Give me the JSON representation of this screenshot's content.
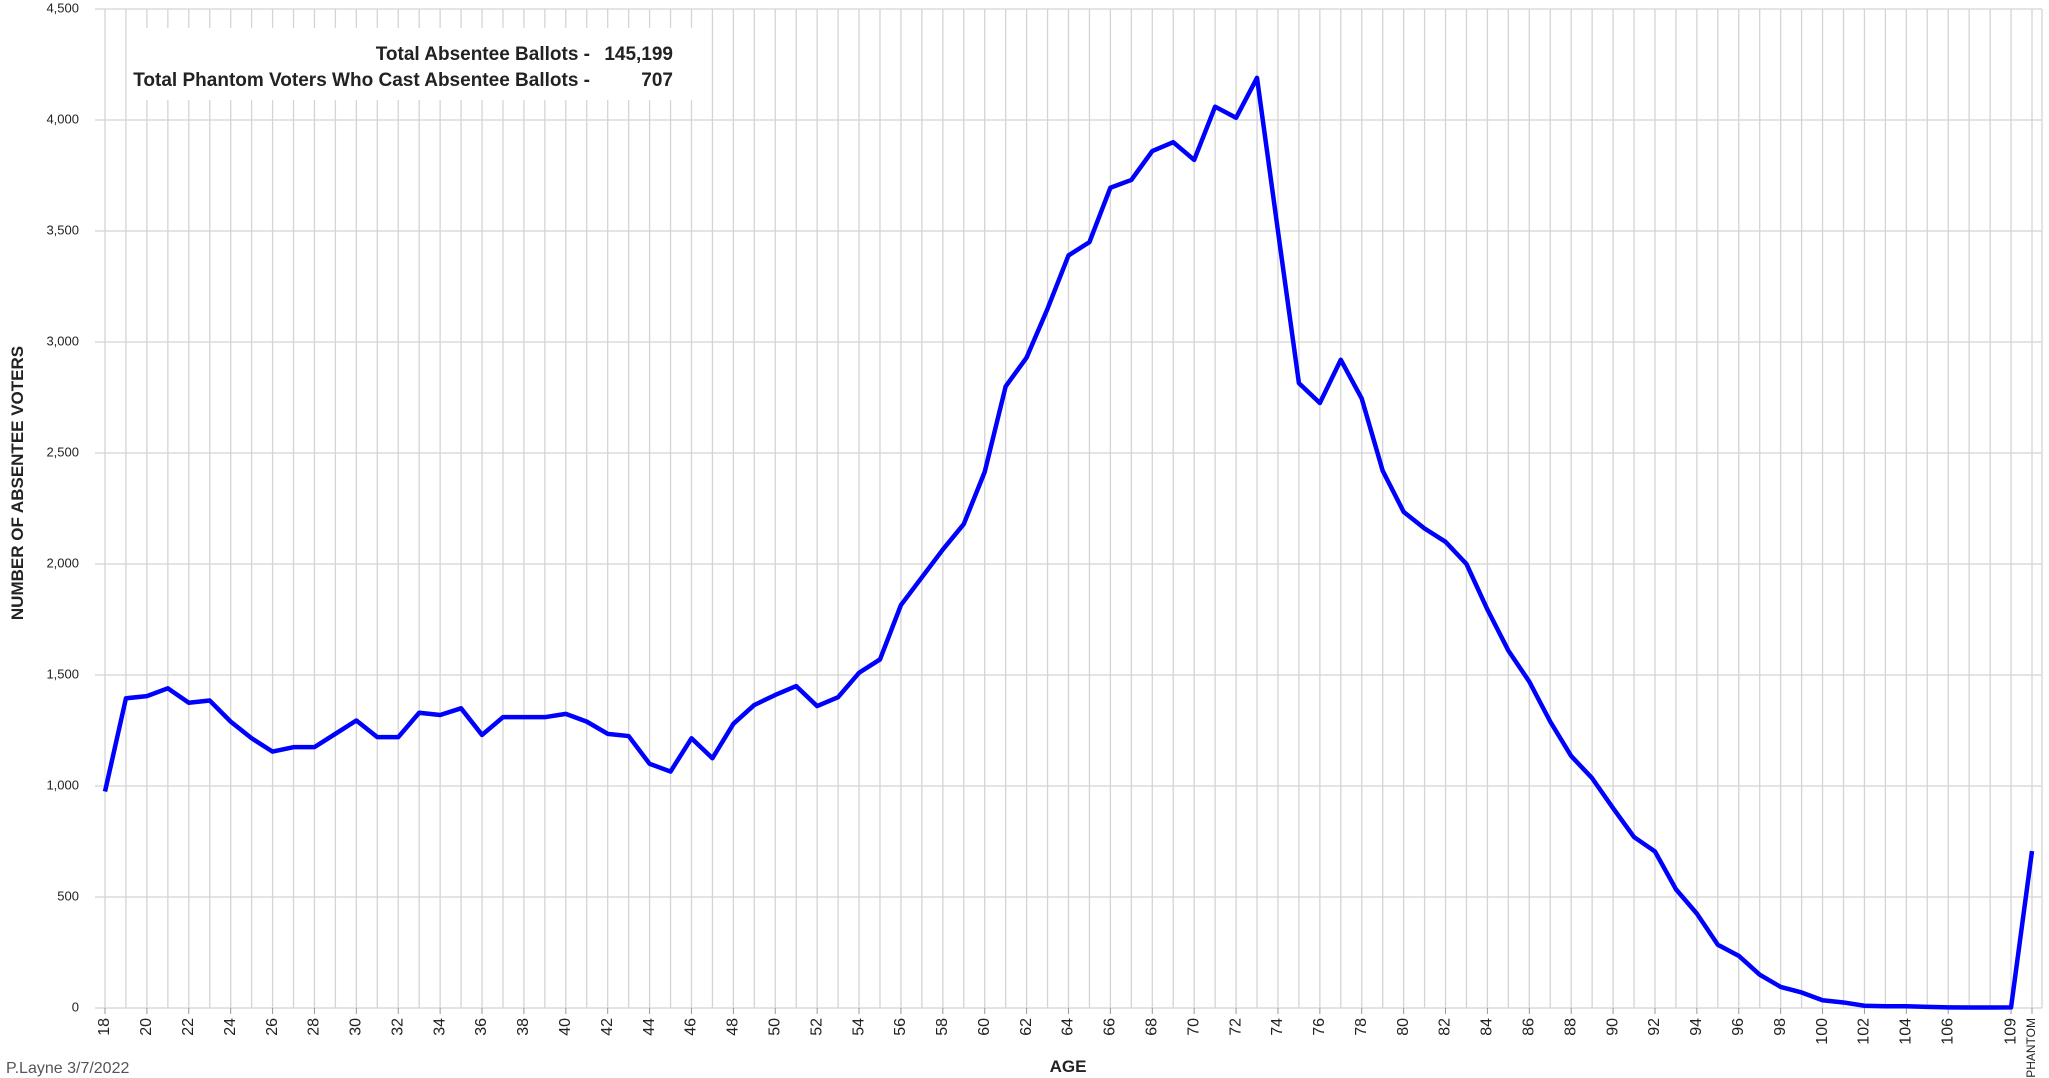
{
  "chart_data": {
    "type": "line",
    "x_label": "AGE",
    "y_label": "NUMBER OF ABSENTEE VOTERS",
    "annotations": [
      {
        "label": "Total Absentee Ballots -",
        "value": "145,199"
      },
      {
        "label": "Total Phantom Voters Who Cast Absentee Ballots -",
        "value": "707"
      }
    ],
    "footer": "P.Layne 3/7/2022",
    "categories": [
      "18",
      null,
      "20",
      null,
      "22",
      null,
      "24",
      null,
      "26",
      null,
      "28",
      null,
      "30",
      null,
      "32",
      null,
      "34",
      null,
      "36",
      null,
      "38",
      null,
      "40",
      null,
      "42",
      null,
      "44",
      null,
      "46",
      null,
      "48",
      null,
      "50",
      null,
      "52",
      null,
      "54",
      null,
      "56",
      null,
      "58",
      null,
      "60",
      null,
      "62",
      null,
      "64",
      null,
      "66",
      null,
      "68",
      null,
      "70",
      null,
      "72",
      null,
      "74",
      null,
      "76",
      null,
      "78",
      null,
      "80",
      null,
      "82",
      null,
      "84",
      null,
      "86",
      null,
      "88",
      null,
      "90",
      null,
      "92",
      null,
      "94",
      null,
      "96",
      null,
      "98",
      null,
      "100",
      null,
      "102",
      null,
      "104",
      null,
      "106",
      null,
      null,
      "109",
      "PHANTOM"
    ],
    "series": [
      {
        "color": "#0000ff",
        "values": [
          975,
          1395,
          1405,
          1440,
          1375,
          1385,
          1290,
          1215,
          1155,
          1175,
          1175,
          1235,
          1295,
          1220,
          1220,
          1330,
          1320,
          1350,
          1230,
          1310,
          1310,
          1310,
          1325,
          1290,
          1235,
          1225,
          1100,
          1065,
          1215,
          1125,
          1280,
          1365,
          1410,
          1450,
          1360,
          1400,
          1510,
          1570,
          1815,
          1940,
          2065,
          2180,
          2415,
          2800,
          2930,
          3150,
          3390,
          3450,
          3695,
          3730,
          3860,
          3900,
          3820,
          4060,
          4010,
          4190,
          3500,
          2815,
          2725,
          2920,
          2745,
          2420,
          2235,
          2160,
          2100,
          2000,
          1795,
          1610,
          1470,
          1290,
          1135,
          1035,
          900,
          770,
          705,
          535,
          425,
          285,
          235,
          150,
          95,
          70,
          35,
          25,
          10,
          8,
          8,
          5,
          3,
          2,
          2,
          3,
          707
        ]
      }
    ],
    "ylim": [
      0,
      4500
    ],
    "yticks": [
      0,
      500,
      {
        "value": 1000,
        "label": "1,000"
      },
      {
        "value": 1500,
        "label": "1,500"
      },
      {
        "value": 2000,
        "label": "2,000"
      },
      {
        "value": 2500,
        "label": "2,500"
      },
      {
        "value": 3000,
        "label": "3,000"
      },
      {
        "value": 3500,
        "label": "3,500"
      },
      {
        "value": 4000,
        "label": "4,000"
      },
      {
        "value": 4500,
        "label": "4,500"
      }
    ],
    "grid": true
  }
}
